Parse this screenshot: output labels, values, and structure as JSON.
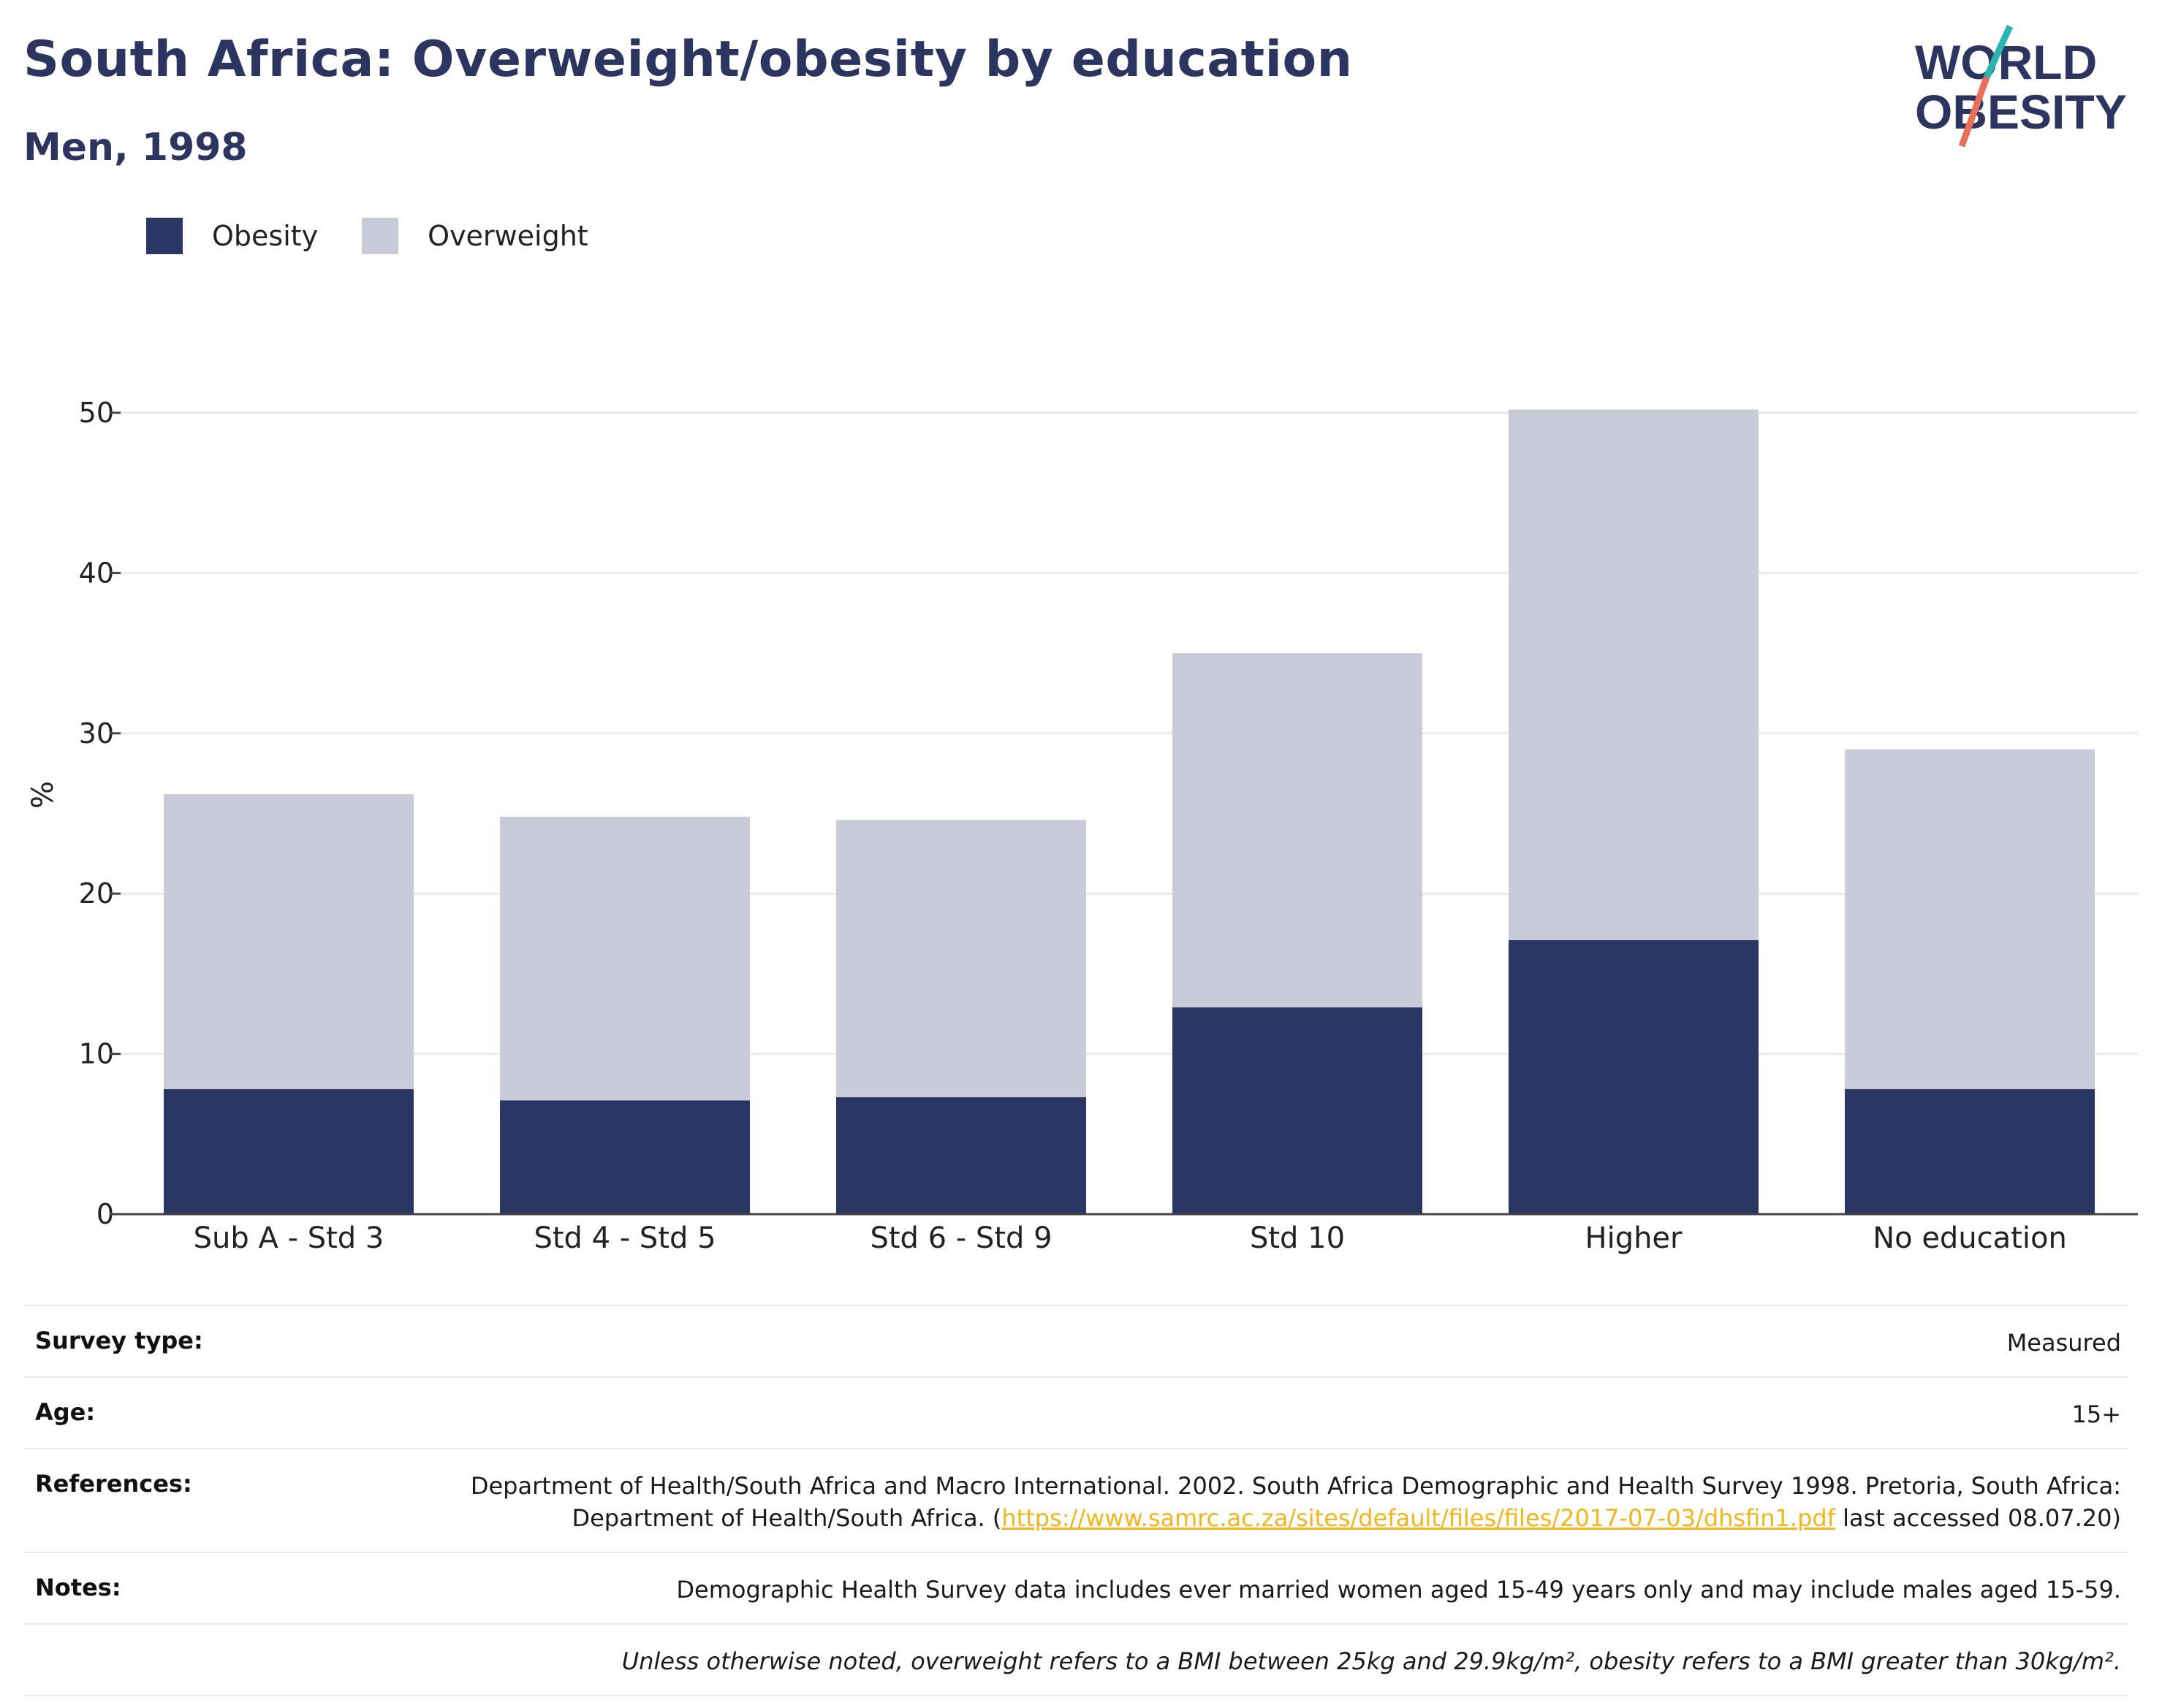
{
  "title": "South Africa: Overweight/obesity by education",
  "subtitle": "Men, 1998",
  "logo": {
    "line1": "WORLD",
    "line2": "OBESITY",
    "accent_teal": "#2bb5b0",
    "accent_coral": "#e8705a",
    "color": "#2c3560"
  },
  "legend": [
    {
      "label": "Obesity",
      "color": "#2a3663"
    },
    {
      "label": "Overweight",
      "color": "#c9ccd8"
    }
  ],
  "chart_data": {
    "type": "bar",
    "stacked": true,
    "categories": [
      "Sub A - Std 3",
      "Std 4 - Std 5",
      "Std 6 - Std 9",
      "Std 10",
      "Higher",
      "No education"
    ],
    "series": [
      {
        "name": "Obesity",
        "color": "#2a3663",
        "values": [
          7.8,
          7.1,
          7.3,
          12.9,
          17.1,
          7.8
        ]
      },
      {
        "name": "Overweight",
        "color": "#c9ccd8",
        "values": [
          18.4,
          17.7,
          17.3,
          22.1,
          33.1,
          21.2
        ]
      }
    ],
    "ylabel": "%",
    "xlabel": "",
    "ylim": [
      0,
      55
    ],
    "yticks": [
      0,
      10,
      20,
      30,
      40,
      50
    ],
    "grid": true,
    "legend_position": "top-left"
  },
  "meta": {
    "survey_type": {
      "label": "Survey type:",
      "value": "Measured"
    },
    "age": {
      "label": "Age:",
      "value": "15+"
    },
    "references": {
      "label": "References:",
      "text_before": "Department of Health/South Africa and Macro International. 2002. South Africa Demographic and Health Survey 1998. Pretoria, South Africa: Department of Health/South Africa. (",
      "link": "https://www.samrc.ac.za/sites/default/files/files/2017-07-03/dhsfin1.pdf",
      "text_after": " last accessed 08.07.20)"
    },
    "notes": {
      "label": "Notes:",
      "value": "Demographic Health Survey data includes ever married women aged 15-49 years only and may include males aged 15-59."
    },
    "definition": "Unless otherwise noted, overweight refers to a BMI between 25kg and 29.9kg/m², obesity refers to a BMI greater than 30kg/m²."
  }
}
